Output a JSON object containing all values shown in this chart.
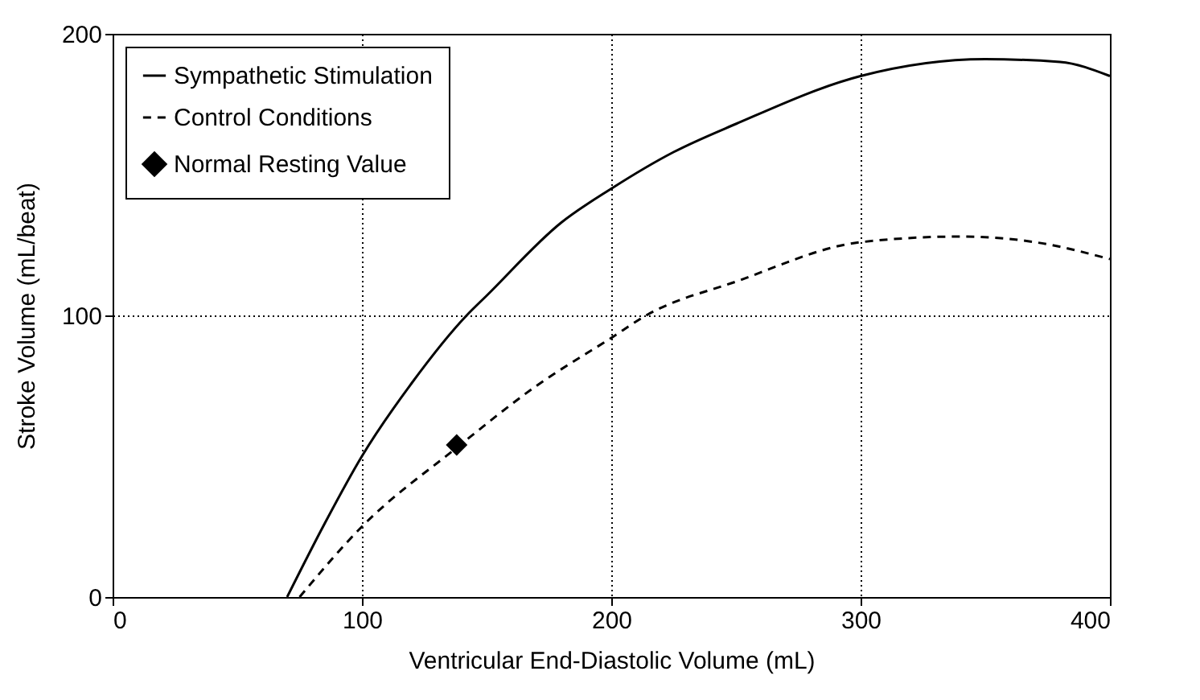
{
  "chart_data": {
    "type": "line",
    "xlabel": "Ventricular End-Diastolic Volume (mL)",
    "ylabel": "Stroke Volume (mL/beat)",
    "xlim": [
      0,
      400
    ],
    "xticks": [
      0,
      100,
      200,
      300,
      400
    ],
    "ylim": [
      0,
      200
    ],
    "yticks": [
      0,
      100,
      200
    ],
    "grid": true,
    "legend": "top left",
    "series": [
      {
        "name": "Sympathetic Stimulation",
        "color": "#000000",
        "line_style": "solid",
        "x": [
          70,
          85,
          100,
          120,
          142,
          150,
          180,
          200,
          225,
          250,
          300,
          350,
          380,
          400
        ],
        "values": [
          0,
          26,
          50,
          76,
          100,
          107,
          133,
          145,
          158,
          168,
          185,
          191,
          190,
          185
        ]
      },
      {
        "name": "Control Conditions",
        "color": "#000000",
        "line_style": "dashed",
        "x": [
          75,
          100,
          138,
          170,
          200,
          214,
          250,
          300,
          340,
          370,
          400
        ],
        "values": [
          0,
          25,
          53,
          75,
          92,
          100,
          112,
          126,
          128,
          126,
          120
        ]
      },
      {
        "name": "Normal Resting Value",
        "color": "#000000",
        "type": "scatter",
        "marker": "diamond",
        "x": [
          138
        ],
        "values": [
          54
        ]
      }
    ]
  }
}
